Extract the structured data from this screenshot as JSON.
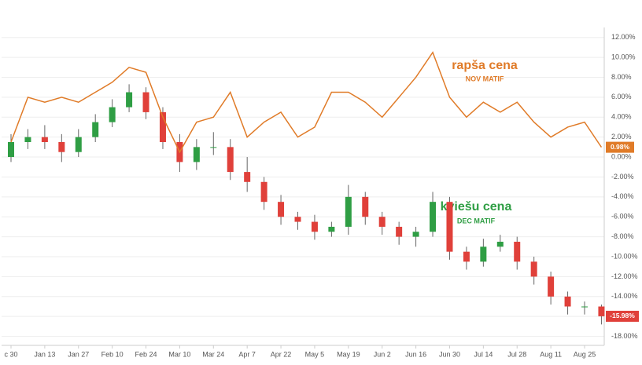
{
  "chart_data": [
    {
      "type": "line",
      "name": "rapša cena",
      "contract": "NOV MATIF",
      "color": "#e07b28",
      "end_label": "0.98%",
      "values": [
        1.5,
        6,
        5.5,
        6,
        5.5,
        6.5,
        7.5,
        9,
        8.5,
        4,
        0.5,
        3.5,
        4,
        6.5,
        2,
        3.5,
        4.5,
        2,
        3,
        6.5,
        6.5,
        5.5,
        4,
        6,
        8,
        10.5,
        6,
        4,
        5.5,
        4.5,
        5.5,
        3.5,
        2,
        3,
        3.5,
        0.98
      ]
    },
    {
      "type": "candlestick",
      "name": "kviešu cena",
      "contract": "DEC MATIF",
      "color": "#2f9e44",
      "down_color": "#e0403a",
      "end_label": "-15.98%",
      "open": [
        0.0,
        1.5,
        2.0,
        1.5,
        0.5,
        2.0,
        3.5,
        5.0,
        6.5,
        4.5,
        1.5,
        -0.5,
        1.0,
        1.0,
        -1.5,
        -2.5,
        -4.5,
        -6,
        -6.5,
        -7.5,
        -7,
        -4,
        -6,
        -7,
        -8,
        -7.5,
        -4.5,
        -9.5,
        -10.5,
        -9,
        -8.5,
        -10.5,
        -12,
        -14,
        -15,
        -15
      ],
      "high": [
        2.3,
        2.8,
        3.2,
        2.3,
        2.8,
        4.3,
        5.8,
        7.3,
        7.0,
        5.0,
        2.3,
        1.8,
        2.5,
        1.8,
        0.0,
        -2.0,
        -3.8,
        -5.5,
        -5.8,
        -6.5,
        -2.8,
        -3.5,
        -5.5,
        -6.5,
        -7.0,
        -3.5,
        -4.0,
        -9.0,
        -8.2,
        -7.8,
        -8.0,
        -10.0,
        -11.5,
        -13.5,
        -14.5,
        -14.8
      ],
      "low": [
        -0.5,
        0.8,
        0.8,
        -0.5,
        0.0,
        1.5,
        3.0,
        4.5,
        3.8,
        0.8,
        -1.5,
        -1.3,
        0.2,
        -2.3,
        -3.5,
        -5.3,
        -6.8,
        -7.3,
        -8.3,
        -8.0,
        -7.8,
        -6.8,
        -7.8,
        -8.8,
        -9.0,
        -8.0,
        -10.3,
        -11.3,
        -11.0,
        -9.5,
        -11.3,
        -12.8,
        -14.8,
        -15.8,
        -15.8,
        -16.8
      ],
      "close": [
        1.5,
        2.0,
        1.5,
        0.5,
        2.0,
        3.5,
        5.0,
        6.5,
        4.5,
        1.5,
        -0.5,
        1.0,
        1.0,
        -1.5,
        -2.5,
        -4.5,
        -6,
        -6.5,
        -7.5,
        -7,
        -4,
        -6,
        -7,
        -8,
        -7.5,
        -4.5,
        -9.5,
        -10.5,
        -9,
        -8.5,
        -10.5,
        -12,
        -14,
        -15,
        -15,
        -15.98
      ]
    },
    {
      "type": "axes",
      "categories": [
        "c 30",
        null,
        "Jan 13",
        null,
        "Jan 27",
        null,
        "Feb 10",
        null,
        "Feb 24",
        null,
        "Mar 10",
        null,
        "Mar 24",
        null,
        "Apr 7",
        null,
        "Apr 22",
        null,
        "May 5",
        null,
        "May 19",
        null,
        "Jun 2",
        null,
        "Jun 16",
        null,
        "Jun 30",
        null,
        "Jul 14",
        null,
        "Jul 28",
        null,
        "Aug 11",
        null,
        "Aug 25",
        null
      ],
      "ylim": [
        -18.9,
        13
      ],
      "yticks": [
        {
          "value": 12,
          "label": "12.00%"
        },
        {
          "value": 10,
          "label": "10.00%"
        },
        {
          "value": 8,
          "label": "8.00%"
        },
        {
          "value": 6,
          "label": "6.00%"
        },
        {
          "value": 4,
          "label": "4.00%"
        },
        {
          "value": 2,
          "label": "2.00%"
        },
        {
          "value": 0,
          "label": "0.00%"
        },
        {
          "value": -2,
          "label": "-2.00%"
        },
        {
          "value": -4,
          "label": "-4.00%"
        },
        {
          "value": -6,
          "label": "-6.00%"
        },
        {
          "value": -8,
          "label": "-8.00%"
        },
        {
          "value": -10,
          "label": "-10.00%"
        },
        {
          "value": -12,
          "label": "-12.00%"
        },
        {
          "value": -14,
          "label": "-14.00%"
        },
        {
          "value": -16,
          "label": "-16.00%"
        },
        {
          "value": -18,
          "label": "-18.00%"
        }
      ]
    }
  ]
}
